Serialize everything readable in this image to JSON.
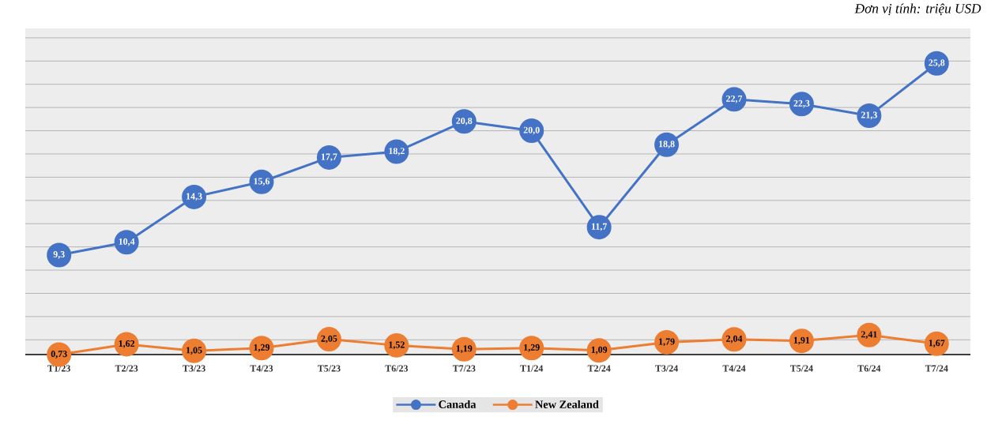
{
  "chart_data": {
    "type": "line",
    "annotations": [
      "Đơn vị tính: triệu USD"
    ],
    "categories": [
      "T1/23",
      "T2/23",
      "T3/23",
      "T4/23",
      "T5/23",
      "T6/23",
      "T7/23",
      "T1/24",
      "T2/24",
      "T3/24",
      "T4/24",
      "T5/24",
      "T6/24",
      "T7/24"
    ],
    "series": [
      {
        "name": "Canada",
        "color": "#4472c4",
        "values": [
          9.3,
          10.4,
          14.3,
          15.6,
          17.7,
          18.2,
          20.8,
          20.0,
          11.7,
          18.8,
          22.7,
          22.3,
          21.3,
          25.8
        ],
        "value_labels": [
          "9,3",
          "10,4",
          "14,3",
          "15,6",
          "17,7",
          "18,2",
          "20,8",
          "20,0",
          "11,7",
          "18,8",
          "22,7",
          "22,3",
          "21,3",
          "25,8"
        ]
      },
      {
        "name": "New Zealand",
        "color": "#ed7d31",
        "values": [
          0.73,
          1.62,
          1.05,
          1.29,
          2.05,
          1.52,
          1.19,
          1.29,
          1.09,
          1.79,
          2.04,
          1.91,
          2.41,
          1.67
        ],
        "value_labels": [
          "0,73",
          "1,62",
          "1,05",
          "1,29",
          "2,05",
          "1,52",
          "1,19",
          "1,29",
          "1,09",
          "1,79",
          "2,04",
          "1,91",
          "2,41",
          "1,67"
        ]
      }
    ],
    "tick_labels": "x",
    "grid": "y",
    "legend": "bottom",
    "marker": "circle",
    "line_style": "solid"
  }
}
